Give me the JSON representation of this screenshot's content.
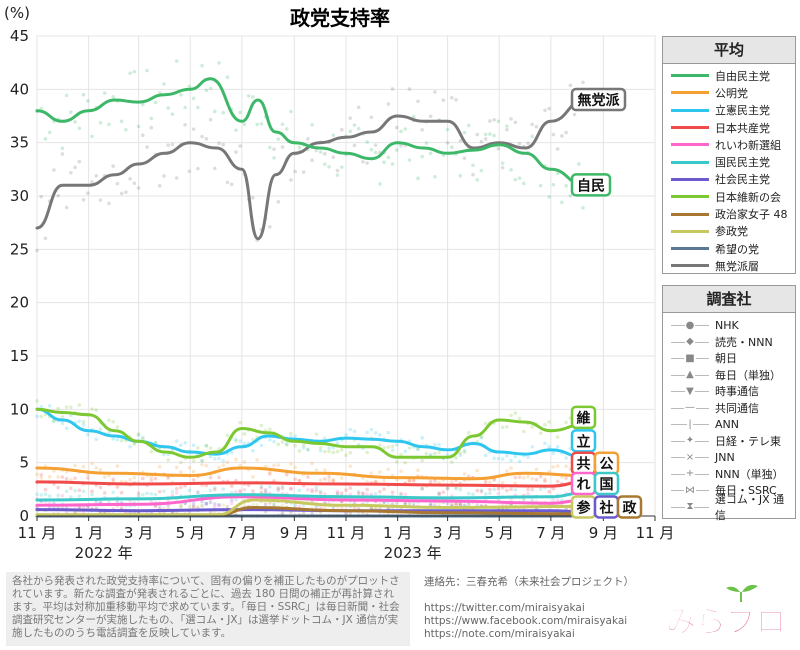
{
  "chart_data": {
    "type": "line",
    "title": "政党支持率",
    "ylabel": "(%)",
    "ylim": [
      0,
      45
    ],
    "yticks": [
      0,
      5,
      10,
      15,
      20,
      25,
      30,
      35,
      40,
      45
    ],
    "xlim": [
      "2021-11-01",
      "2023-11-01"
    ],
    "xticks": [
      {
        "date": "2021-11-01",
        "label": "11 月"
      },
      {
        "date": "2022-01-01",
        "label": "1 月"
      },
      {
        "date": "2022-03-01",
        "label": "3 月"
      },
      {
        "date": "2022-05-01",
        "label": "5 月"
      },
      {
        "date": "2022-07-01",
        "label": "7 月"
      },
      {
        "date": "2022-09-01",
        "label": "9 月"
      },
      {
        "date": "2022-11-01",
        "label": "11 月"
      },
      {
        "date": "2023-01-01",
        "label": "1 月"
      },
      {
        "date": "2023-03-01",
        "label": "3 月"
      },
      {
        "date": "2023-05-01",
        "label": "5 月"
      },
      {
        "date": "2023-07-01",
        "label": "7 月"
      },
      {
        "date": "2023-09-01",
        "label": "9 月"
      },
      {
        "date": "2023-11-01",
        "label": "11 月"
      }
    ],
    "year_labels": [
      {
        "date": "2022-01-01",
        "label": "2022 年"
      },
      {
        "date": "2023-01-01",
        "label": "2023 年"
      }
    ],
    "grid": true,
    "legend_position": "right",
    "series": [
      {
        "name": "自由民主党",
        "color": "#3cb868",
        "x": [
          "2021-11-01",
          "2021-12-01",
          "2022-01-01",
          "2022-02-01",
          "2022-03-01",
          "2022-04-01",
          "2022-05-01",
          "2022-05-25",
          "2022-07-01",
          "2022-07-20",
          "2022-08-10",
          "2022-09-01",
          "2022-10-01",
          "2022-11-01",
          "2022-12-01",
          "2023-01-01",
          "2023-02-01",
          "2023-03-01",
          "2023-04-01",
          "2023-05-01",
          "2023-06-01",
          "2023-07-01",
          "2023-08-10"
        ],
        "values": [
          38,
          37,
          38,
          39,
          38.8,
          39.5,
          40,
          41,
          37,
          39,
          36,
          35,
          34.5,
          34,
          33.5,
          35,
          34.5,
          34,
          34.3,
          34.8,
          34,
          32.5,
          31
        ]
      },
      {
        "name": "公明党",
        "color": "#f5a033",
        "x": [
          "2021-11-01",
          "2022-02-01",
          "2022-05-01",
          "2022-07-01",
          "2022-10-01",
          "2023-01-01",
          "2023-04-01",
          "2023-06-01",
          "2023-08-10"
        ],
        "values": [
          4.5,
          4,
          3.8,
          4.5,
          4,
          3.6,
          3.5,
          4,
          3.8
        ]
      },
      {
        "name": "立憲民主党",
        "color": "#2ec6ee",
        "x": [
          "2021-11-01",
          "2021-12-01",
          "2022-01-01",
          "2022-02-01",
          "2022-03-01",
          "2022-04-01",
          "2022-05-01",
          "2022-06-01",
          "2022-07-01",
          "2022-08-01",
          "2022-09-01",
          "2022-10-01",
          "2022-11-01",
          "2022-12-01",
          "2023-01-01",
          "2023-02-01",
          "2023-03-01",
          "2023-04-01",
          "2023-05-01",
          "2023-06-01",
          "2023-07-01",
          "2023-08-10"
        ],
        "values": [
          10,
          9,
          8,
          7.5,
          7,
          6.5,
          6,
          5.8,
          6.5,
          7.5,
          7.2,
          7,
          7.3,
          7.2,
          7,
          6.5,
          6.2,
          6.8,
          6,
          5.8,
          6.2,
          5.5
        ]
      },
      {
        "name": "日本共産党",
        "color": "#f04a4a",
        "x": [
          "2021-11-01",
          "2022-03-01",
          "2022-07-01",
          "2022-11-01",
          "2023-03-01",
          "2023-07-01",
          "2023-08-10"
        ],
        "values": [
          3.2,
          3,
          3.1,
          3,
          2.9,
          2.8,
          3.2
        ]
      },
      {
        "name": "れいわ新選組",
        "color": "#ff66cc",
        "x": [
          "2021-11-01",
          "2022-03-01",
          "2022-07-01",
          "2022-11-01",
          "2023-03-01",
          "2023-07-01",
          "2023-08-10"
        ],
        "values": [
          1,
          1.1,
          1.8,
          1.5,
          1.4,
          1.2,
          1.5
        ]
      },
      {
        "name": "国民民主党",
        "color": "#3cc8c8",
        "x": [
          "2021-11-01",
          "2022-03-01",
          "2022-07-01",
          "2022-11-01",
          "2023-03-01",
          "2023-07-01",
          "2023-08-10"
        ],
        "values": [
          1.5,
          1.6,
          2,
          1.8,
          1.7,
          1.8,
          2.2
        ]
      },
      {
        "name": "社会民主党",
        "color": "#6a5acd",
        "x": [
          "2021-11-01",
          "2022-03-01",
          "2022-07-01",
          "2022-11-01",
          "2023-03-01",
          "2023-07-01",
          "2023-08-10"
        ],
        "values": [
          0.6,
          0.5,
          0.6,
          0.5,
          0.5,
          0.5,
          0.4
        ]
      },
      {
        "name": "日本維新の会",
        "color": "#7cc832",
        "x": [
          "2021-11-01",
          "2021-12-01",
          "2022-01-01",
          "2022-02-01",
          "2022-03-01",
          "2022-04-01",
          "2022-05-01",
          "2022-06-01",
          "2022-07-01",
          "2022-08-01",
          "2022-09-01",
          "2022-10-01",
          "2022-11-01",
          "2022-12-01",
          "2023-01-01",
          "2023-02-01",
          "2023-03-01",
          "2023-04-01",
          "2023-05-01",
          "2023-06-01",
          "2023-07-01",
          "2023-08-10"
        ],
        "values": [
          10,
          9.7,
          9.5,
          8,
          7,
          6,
          5.5,
          6,
          8.2,
          7.8,
          7,
          6.8,
          6.5,
          6.5,
          5.5,
          5.5,
          5.5,
          7.5,
          9,
          8.8,
          8,
          8.6
        ]
      },
      {
        "name": "政治家女子 48",
        "color": "#a87832",
        "x": [
          "2021-11-01",
          "2022-06-01",
          "2022-07-15",
          "2022-11-01",
          "2023-03-01",
          "2023-08-10"
        ],
        "values": [
          0.1,
          0.1,
          0.8,
          0.5,
          0.3,
          0.2
        ]
      },
      {
        "name": "参政党",
        "color": "#c8c860",
        "x": [
          "2021-11-01",
          "2022-06-01",
          "2022-07-15",
          "2022-11-01",
          "2023-03-01",
          "2023-08-10"
        ],
        "values": [
          0.1,
          0.1,
          1.5,
          1,
          0.8,
          0.9
        ]
      },
      {
        "name": "希望の党",
        "color": "#5a7896",
        "x": [
          "2021-11-01",
          "2023-08-10"
        ],
        "values": [
          0,
          0
        ]
      },
      {
        "name": "無党派層",
        "color": "#777777",
        "x": [
          "2021-11-01",
          "2021-12-01",
          "2022-01-01",
          "2022-02-01",
          "2022-03-01",
          "2022-04-01",
          "2022-05-01",
          "2022-06-01",
          "2022-07-01",
          "2022-07-20",
          "2022-08-10",
          "2022-09-01",
          "2022-10-01",
          "2022-11-01",
          "2022-12-01",
          "2023-01-01",
          "2023-02-01",
          "2023-03-01",
          "2023-04-01",
          "2023-05-01",
          "2023-06-01",
          "2023-07-01",
          "2023-08-10"
        ],
        "values": [
          27,
          31,
          31,
          32,
          33,
          34,
          35,
          34.5,
          32.5,
          26,
          32,
          34,
          35,
          35.5,
          36,
          37.5,
          37,
          37,
          34.5,
          35,
          34.5,
          37,
          39
        ]
      }
    ],
    "end_labels": [
      {
        "text": "無党派",
        "value": 39,
        "color": "#777777",
        "col": 0
      },
      {
        "text": "自民",
        "value": 31,
        "color": "#3cb868",
        "col": 0
      },
      {
        "text": "維",
        "value": 9.2,
        "color": "#7cc832",
        "col": 0
      },
      {
        "text": "立",
        "value": 7,
        "color": "#2ec6ee",
        "col": 0
      },
      {
        "text": "共",
        "value": 4.9,
        "color": "#f04a4a",
        "col": 0
      },
      {
        "text": "公",
        "value": 4.9,
        "color": "#f5a033",
        "col": 1
      },
      {
        "text": "れ",
        "value": 3,
        "color": "#ff66cc",
        "col": 0
      },
      {
        "text": "国",
        "value": 3,
        "color": "#3cc8c8",
        "col": 1
      },
      {
        "text": "参",
        "value": 0.8,
        "color": "#c8c860",
        "col": 0
      },
      {
        "text": "社",
        "value": 0.8,
        "color": "#6a5acd",
        "col": 1
      },
      {
        "text": "政",
        "value": 0.8,
        "color": "#a87832",
        "col": 2
      }
    ]
  },
  "legend": {
    "title": "平均",
    "items": [
      {
        "label": "自由民主党",
        "color": "#3cb868"
      },
      {
        "label": "公明党",
        "color": "#f5a033"
      },
      {
        "label": "立憲民主党",
        "color": "#2ec6ee"
      },
      {
        "label": "日本共産党",
        "color": "#f04a4a"
      },
      {
        "label": "れいわ新選組",
        "color": "#ff66cc"
      },
      {
        "label": "国民民主党",
        "color": "#3cc8c8"
      },
      {
        "label": "社会民主党",
        "color": "#6a5acd"
      },
      {
        "label": "日本維新の会",
        "color": "#7cc832"
      },
      {
        "label": "政治家女子 48",
        "color": "#a87832"
      },
      {
        "label": "参政党",
        "color": "#c8c860"
      },
      {
        "label": "希望の党",
        "color": "#5a7896"
      },
      {
        "label": "無党派層",
        "color": "#777777"
      }
    ]
  },
  "surveyors": {
    "title": "調査社",
    "items": [
      {
        "label": "NHK",
        "marker": "●"
      },
      {
        "label": "読売・NNN",
        "marker": "◆"
      },
      {
        "label": "朝日",
        "marker": "■"
      },
      {
        "label": "毎日（単独）",
        "marker": "▲"
      },
      {
        "label": "時事通信",
        "marker": "▼"
      },
      {
        "label": "共同通信",
        "marker": "—"
      },
      {
        "label": "ANN",
        "marker": "|"
      },
      {
        "label": "日経・テレ東",
        "marker": "✦"
      },
      {
        "label": "JNN",
        "marker": "×"
      },
      {
        "label": "NNN（単独）",
        "marker": "+"
      },
      {
        "label": "毎日・SSRC",
        "marker": "⋈"
      },
      {
        "label": "選コム・JX 通信",
        "marker": "⧗"
      }
    ]
  },
  "footer": {
    "note": "各社から発表された政党支持率について、固有の偏りを補正したものがプロットされています。新たな調査が発表されるごとに、過去 180 日間の補正が再計算されます。平均は対称加重移動平均で求めています。「毎日・SSRC」は毎日新聞・社会調査研究センターが実施したもの、「選コム・JX」は選挙ドットコム・JX 通信が実施したもののうち電話調査を反映しています。",
    "contact_label": "連絡先：三春充希（未来社会プロジェクト）",
    "links": [
      "https://twitter.com/miraisyakai",
      "https://www.facebook.com/miraisyakai",
      "https://note.com/miraisyakai"
    ],
    "logo_text": "みらプロ"
  }
}
